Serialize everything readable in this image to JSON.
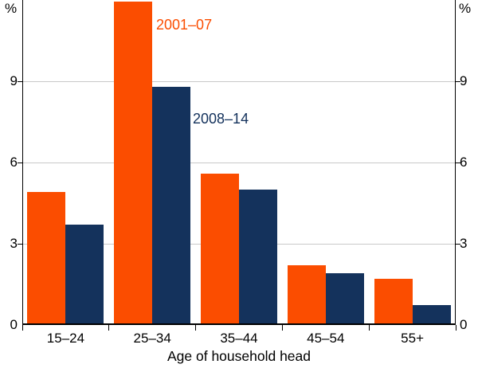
{
  "chart_data": {
    "type": "bar",
    "title": "",
    "categories": [
      "15–24",
      "25–34",
      "35–44",
      "45–54",
      "55+"
    ],
    "series": [
      {
        "name": "2001–07",
        "color": "#fb4d00",
        "values": [
          4.9,
          11.95,
          5.6,
          2.2,
          1.7
        ]
      },
      {
        "name": "2008–14",
        "color": "#14325c",
        "values": [
          3.7,
          8.8,
          5.0,
          1.9,
          0.75
        ]
      }
    ],
    "xlabel": "Age of household head",
    "y_unit": "%",
    "ylim": [
      0,
      12
    ],
    "yticks": [
      0,
      3,
      6,
      9
    ],
    "grid": true,
    "legend": "inline-text-annotations",
    "annotations": [
      {
        "text": "2001–07",
        "color": "#fb4d00"
      },
      {
        "text": "2008–14",
        "color": "#14325c"
      }
    ]
  }
}
